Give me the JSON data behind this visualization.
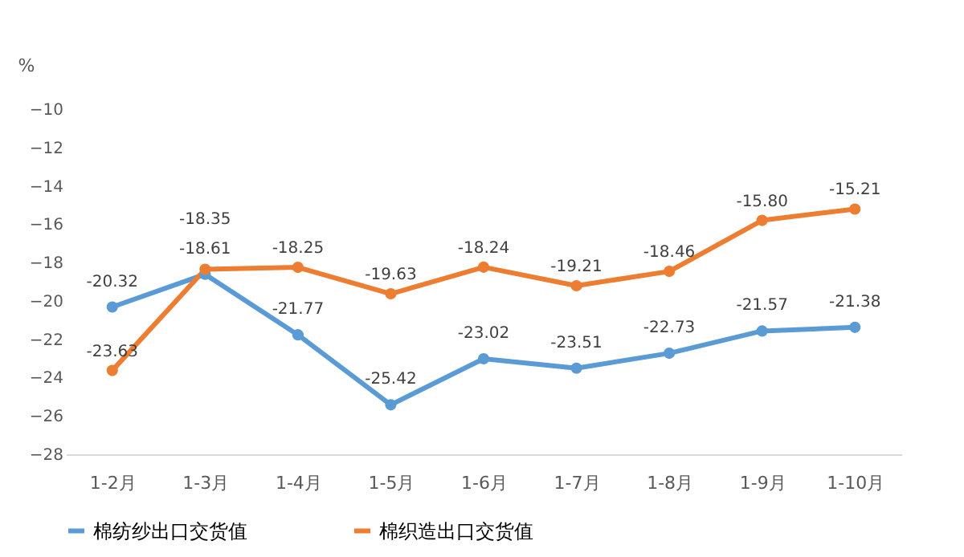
{
  "chart_data": {
    "type": "line",
    "ylabel": "%",
    "categories": [
      "1-2月",
      "1-3月",
      "1-4月",
      "1-5月",
      "1-6月",
      "1-7月",
      "1-8月",
      "1-9月",
      "1-10月"
    ],
    "series": [
      {
        "name": "棉纺纱出口交货值",
        "color": "#5b9bd5",
        "values": [
          -20.32,
          -18.61,
          -21.77,
          -25.42,
          -23.02,
          -23.51,
          -22.73,
          -21.57,
          -21.38
        ],
        "value_labels": [
          "-20.32",
          "-18.61",
          "-21.77",
          "-25.42",
          "-23.02",
          "-23.51",
          "-22.73",
          "-21.57",
          "-21.38"
        ]
      },
      {
        "name": "棉织造出口交货值",
        "color": "#ed7d31",
        "values": [
          -23.63,
          -18.35,
          -18.25,
          -19.63,
          -18.24,
          -19.21,
          -18.46,
          -15.8,
          -15.21
        ],
        "value_labels": [
          "-23.63",
          "-18.35",
          "-18.25",
          "-19.63",
          "-18.24",
          "-19.21",
          "-18.46",
          "-15.80",
          "-15.21"
        ]
      }
    ],
    "ylim": [
      -28,
      -10
    ],
    "yticks": [
      -10,
      -12,
      -14,
      -16,
      -18,
      -20,
      -22,
      -24,
      -26,
      -28
    ],
    "grid": false,
    "legend": "bottom",
    "marker": "circle",
    "line_style": "solid"
  }
}
